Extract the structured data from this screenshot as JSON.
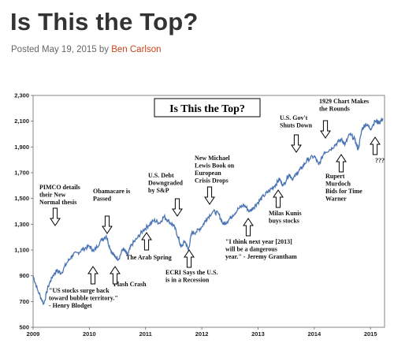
{
  "post": {
    "title": "Is This the Top?",
    "posted_prefix": "Posted May 19, 2015 by ",
    "author": "Ben Carlson"
  },
  "colors": {
    "line": "#4a74b4",
    "arrow": "#000000",
    "author": "#c8431a"
  },
  "chart_data": {
    "type": "line",
    "title": "Is This the Top?",
    "xlabel": "",
    "ylabel": "",
    "xlim": [
      2009.0,
      2015.25
    ],
    "ylim": [
      500,
      2300
    ],
    "x_ticks": [
      "2009",
      "2010",
      "2011",
      "2012",
      "2013",
      "2014",
      "2015"
    ],
    "y_ticks": [
      "500",
      "700",
      "900",
      "1,100",
      "1,300",
      "1,500",
      "1,700",
      "1,900",
      "2,100",
      "2,300"
    ],
    "series": [
      {
        "values": [
          [
            2009.0,
            900
          ],
          [
            2009.08,
            790
          ],
          [
            2009.19,
            680
          ],
          [
            2009.27,
            820
          ],
          [
            2009.35,
            900
          ],
          [
            2009.42,
            940
          ],
          [
            2009.5,
            920
          ],
          [
            2009.6,
            1000
          ],
          [
            2009.7,
            1060
          ],
          [
            2009.8,
            1080
          ],
          [
            2009.9,
            1110
          ],
          [
            2010.0,
            1130
          ],
          [
            2010.08,
            1090
          ],
          [
            2010.2,
            1170
          ],
          [
            2010.3,
            1210
          ],
          [
            2010.38,
            1100
          ],
          [
            2010.45,
            1050
          ],
          [
            2010.52,
            1030
          ],
          [
            2010.6,
            1110
          ],
          [
            2010.68,
            1060
          ],
          [
            2010.75,
            1140
          ],
          [
            2010.85,
            1190
          ],
          [
            2010.95,
            1250
          ],
          [
            2011.05,
            1290
          ],
          [
            2011.15,
            1330
          ],
          [
            2011.25,
            1310
          ],
          [
            2011.33,
            1360
          ],
          [
            2011.42,
            1320
          ],
          [
            2011.5,
            1290
          ],
          [
            2011.58,
            1200
          ],
          [
            2011.63,
            1120
          ],
          [
            2011.7,
            1170
          ],
          [
            2011.76,
            1100
          ],
          [
            2011.82,
            1230
          ],
          [
            2011.9,
            1240
          ],
          [
            2012.0,
            1280
          ],
          [
            2012.08,
            1340
          ],
          [
            2012.2,
            1400
          ],
          [
            2012.3,
            1380
          ],
          [
            2012.38,
            1300
          ],
          [
            2012.45,
            1320
          ],
          [
            2012.55,
            1370
          ],
          [
            2012.65,
            1420
          ],
          [
            2012.75,
            1450
          ],
          [
            2012.85,
            1400
          ],
          [
            2012.92,
            1430
          ],
          [
            2013.0,
            1470
          ],
          [
            2013.1,
            1520
          ],
          [
            2013.2,
            1560
          ],
          [
            2013.3,
            1600
          ],
          [
            2013.38,
            1650
          ],
          [
            2013.45,
            1600
          ],
          [
            2013.55,
            1690
          ],
          [
            2013.62,
            1650
          ],
          [
            2013.7,
            1700
          ],
          [
            2013.78,
            1740
          ],
          [
            2013.88,
            1800
          ],
          [
            2014.0,
            1830
          ],
          [
            2014.08,
            1760
          ],
          [
            2014.18,
            1860
          ],
          [
            2014.28,
            1880
          ],
          [
            2014.38,
            1920
          ],
          [
            2014.48,
            1960
          ],
          [
            2014.55,
            1920
          ],
          [
            2014.63,
            2000
          ],
          [
            2014.72,
            1960
          ],
          [
            2014.78,
            1880
          ],
          [
            2014.85,
            2040
          ],
          [
            2014.92,
            2080
          ],
          [
            2015.0,
            2040
          ],
          [
            2015.08,
            2100
          ],
          [
            2015.15,
            2090
          ],
          [
            2015.22,
            2120
          ]
        ]
      }
    ],
    "grid": false,
    "legend": "none",
    "annotations": [
      {
        "lines": [
          "PIMCO details",
          "their New",
          "Normal thesis"
        ],
        "x": 2009.63,
        "arrow": "down"
      },
      {
        "lines": [
          "Obamacare is",
          "Passed"
        ],
        "x": 2010.22,
        "arrow": "down"
      },
      {
        "lines": [
          "\"US stocks surge back",
          "toward bubble territory.\"",
          "- Henry Blodget"
        ],
        "x": 2009.98,
        "arrow": "up"
      },
      {
        "lines": [
          "Flash Crash"
        ],
        "x": 2010.36,
        "arrow": "up"
      },
      {
        "lines": [
          "The Arab Spring"
        ],
        "x": 2011.18,
        "arrow": "up"
      },
      {
        "lines": [
          "U.S. Debt",
          "Downgraded",
          "by S&P"
        ],
        "x": 2011.6,
        "arrow": "down"
      },
      {
        "lines": [
          "ECRI Says the U.S.",
          "is in a Recession"
        ],
        "x": 2011.76,
        "arrow": "up"
      },
      {
        "lines": [
          "New Michael",
          "Lewis Book on",
          "European",
          "Crisis Drops"
        ],
        "x": 2012.13,
        "arrow": "down"
      },
      {
        "lines": [
          "\"I think next year [2013]",
          "will be a dangerous",
          "year.\" - Jeremy Grantham"
        ],
        "x": 2012.95,
        "arrow": "up"
      },
      {
        "lines": [
          "Milas Kunis",
          "buys stocks"
        ],
        "x": 2013.45,
        "arrow": "up"
      },
      {
        "lines": [
          "U.S. Gov't",
          "Shuts Down"
        ],
        "x": 2013.78,
        "arrow": "down"
      },
      {
        "lines": [
          "1929 Chart Makes",
          "the Rounds"
        ],
        "x": 2014.16,
        "arrow": "down"
      },
      {
        "lines": [
          "Rupert",
          "Murdoch",
          "Bids for Time",
          "Warner"
        ],
        "x": 2014.5,
        "arrow": "up"
      },
      {
        "lines": [
          "???"
        ],
        "x": 2015.12,
        "arrow": "up"
      }
    ]
  }
}
